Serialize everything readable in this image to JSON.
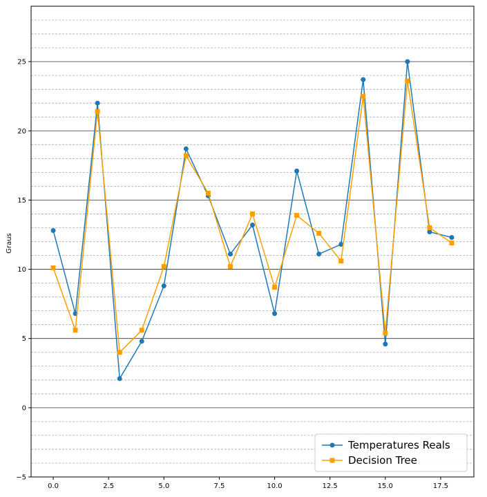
{
  "chart_data": {
    "type": "line",
    "title": "",
    "xlabel": "",
    "ylabel": "Graus",
    "xlim": [
      -1,
      19
    ],
    "ylim": [
      -5,
      29
    ],
    "x_ticks": [
      0,
      2.5,
      5,
      7.5,
      10,
      12.5,
      15,
      17.5
    ],
    "x_tick_labels": [
      "0.0",
      "2.5",
      "5.0",
      "7.5",
      "10.0",
      "12.5",
      "15.0",
      "17.5"
    ],
    "y_ticks": [
      -5,
      0,
      5,
      10,
      15,
      20,
      25
    ],
    "y_tick_labels": [
      "−5",
      "0",
      "5",
      "10",
      "15",
      "20",
      "25"
    ],
    "grid": {
      "major": true,
      "minor": true,
      "minor_step": 1
    },
    "legend_position": "bottom-right",
    "x": [
      0,
      1,
      2,
      3,
      4,
      5,
      6,
      7,
      8,
      9,
      10,
      11,
      12,
      13,
      14,
      15,
      16,
      17,
      18
    ],
    "series": [
      {
        "name": "Temperatures Reals",
        "color": "#1f77b4",
        "marker": "circle",
        "values": [
          12.8,
          6.8,
          22.0,
          2.1,
          4.8,
          8.8,
          18.7,
          15.3,
          11.1,
          13.2,
          6.8,
          17.1,
          11.1,
          11.8,
          23.7,
          4.6,
          25.0,
          12.7,
          12.3
        ]
      },
      {
        "name": "Decision Tree",
        "color": "#ff9e00",
        "marker": "square",
        "values": [
          10.1,
          5.6,
          21.4,
          4.0,
          5.6,
          10.2,
          18.2,
          15.5,
          10.2,
          14.0,
          8.7,
          13.9,
          12.6,
          10.6,
          22.5,
          5.4,
          23.6,
          13.0,
          11.9
        ]
      }
    ]
  }
}
